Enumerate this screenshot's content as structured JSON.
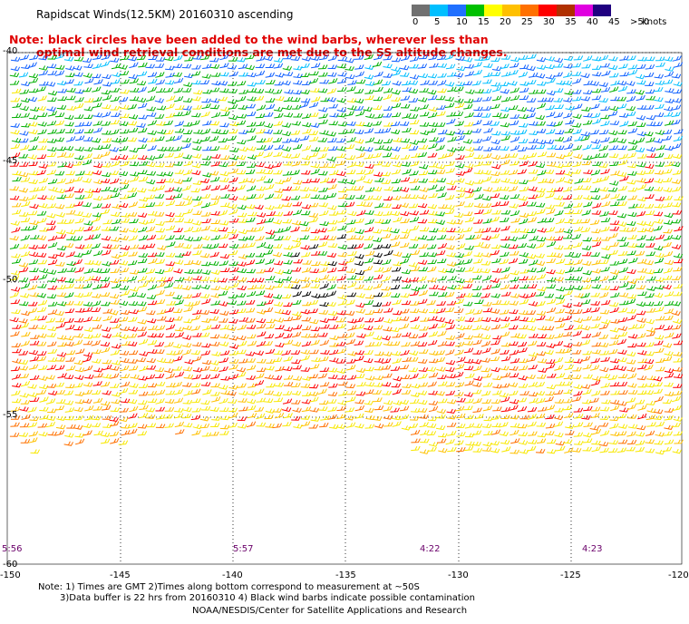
{
  "title": "Rapidscat Winds(12.5KM) 20160310 ascending",
  "note_red": [
    "Note: black circles have been added to the wind barbs, wherever less than",
    "optimal wind retrieval conditions are met due to the SS altitude changes."
  ],
  "legend": {
    "labels": [
      "0",
      "5",
      "10",
      "15",
      "20",
      "25",
      "30",
      "35",
      "40",
      "45",
      ">50"
    ],
    "unit": "knots",
    "colors": [
      "#707070",
      "#00bfff",
      "#2070ff",
      "#00c000",
      "#ffff00",
      "#ffc000",
      "#ff7000",
      "#ff0000",
      "#b03000",
      "#e000e0",
      "#200080"
    ]
  },
  "axes": {
    "lat_labels": [
      "-40",
      "-45",
      "-50",
      "-55",
      "-60"
    ],
    "lon_labels": [
      "-150",
      "-145",
      "-140",
      "-135",
      "-130",
      "-125",
      "-120"
    ]
  },
  "pass_times": [
    "5:56",
    "5:57",
    "4:22",
    "4:23"
  ],
  "footnotes": [
    "Note: 1) Times are GMT 2)Times along bottom correspond to measurement at ~50S",
    "3)Data buffer is 22 hrs from 20160310 4) Black wind barbs indicate possible contamination",
    "NOAA/NESDIS/Center for Satellite Applications and Research"
  ]
}
